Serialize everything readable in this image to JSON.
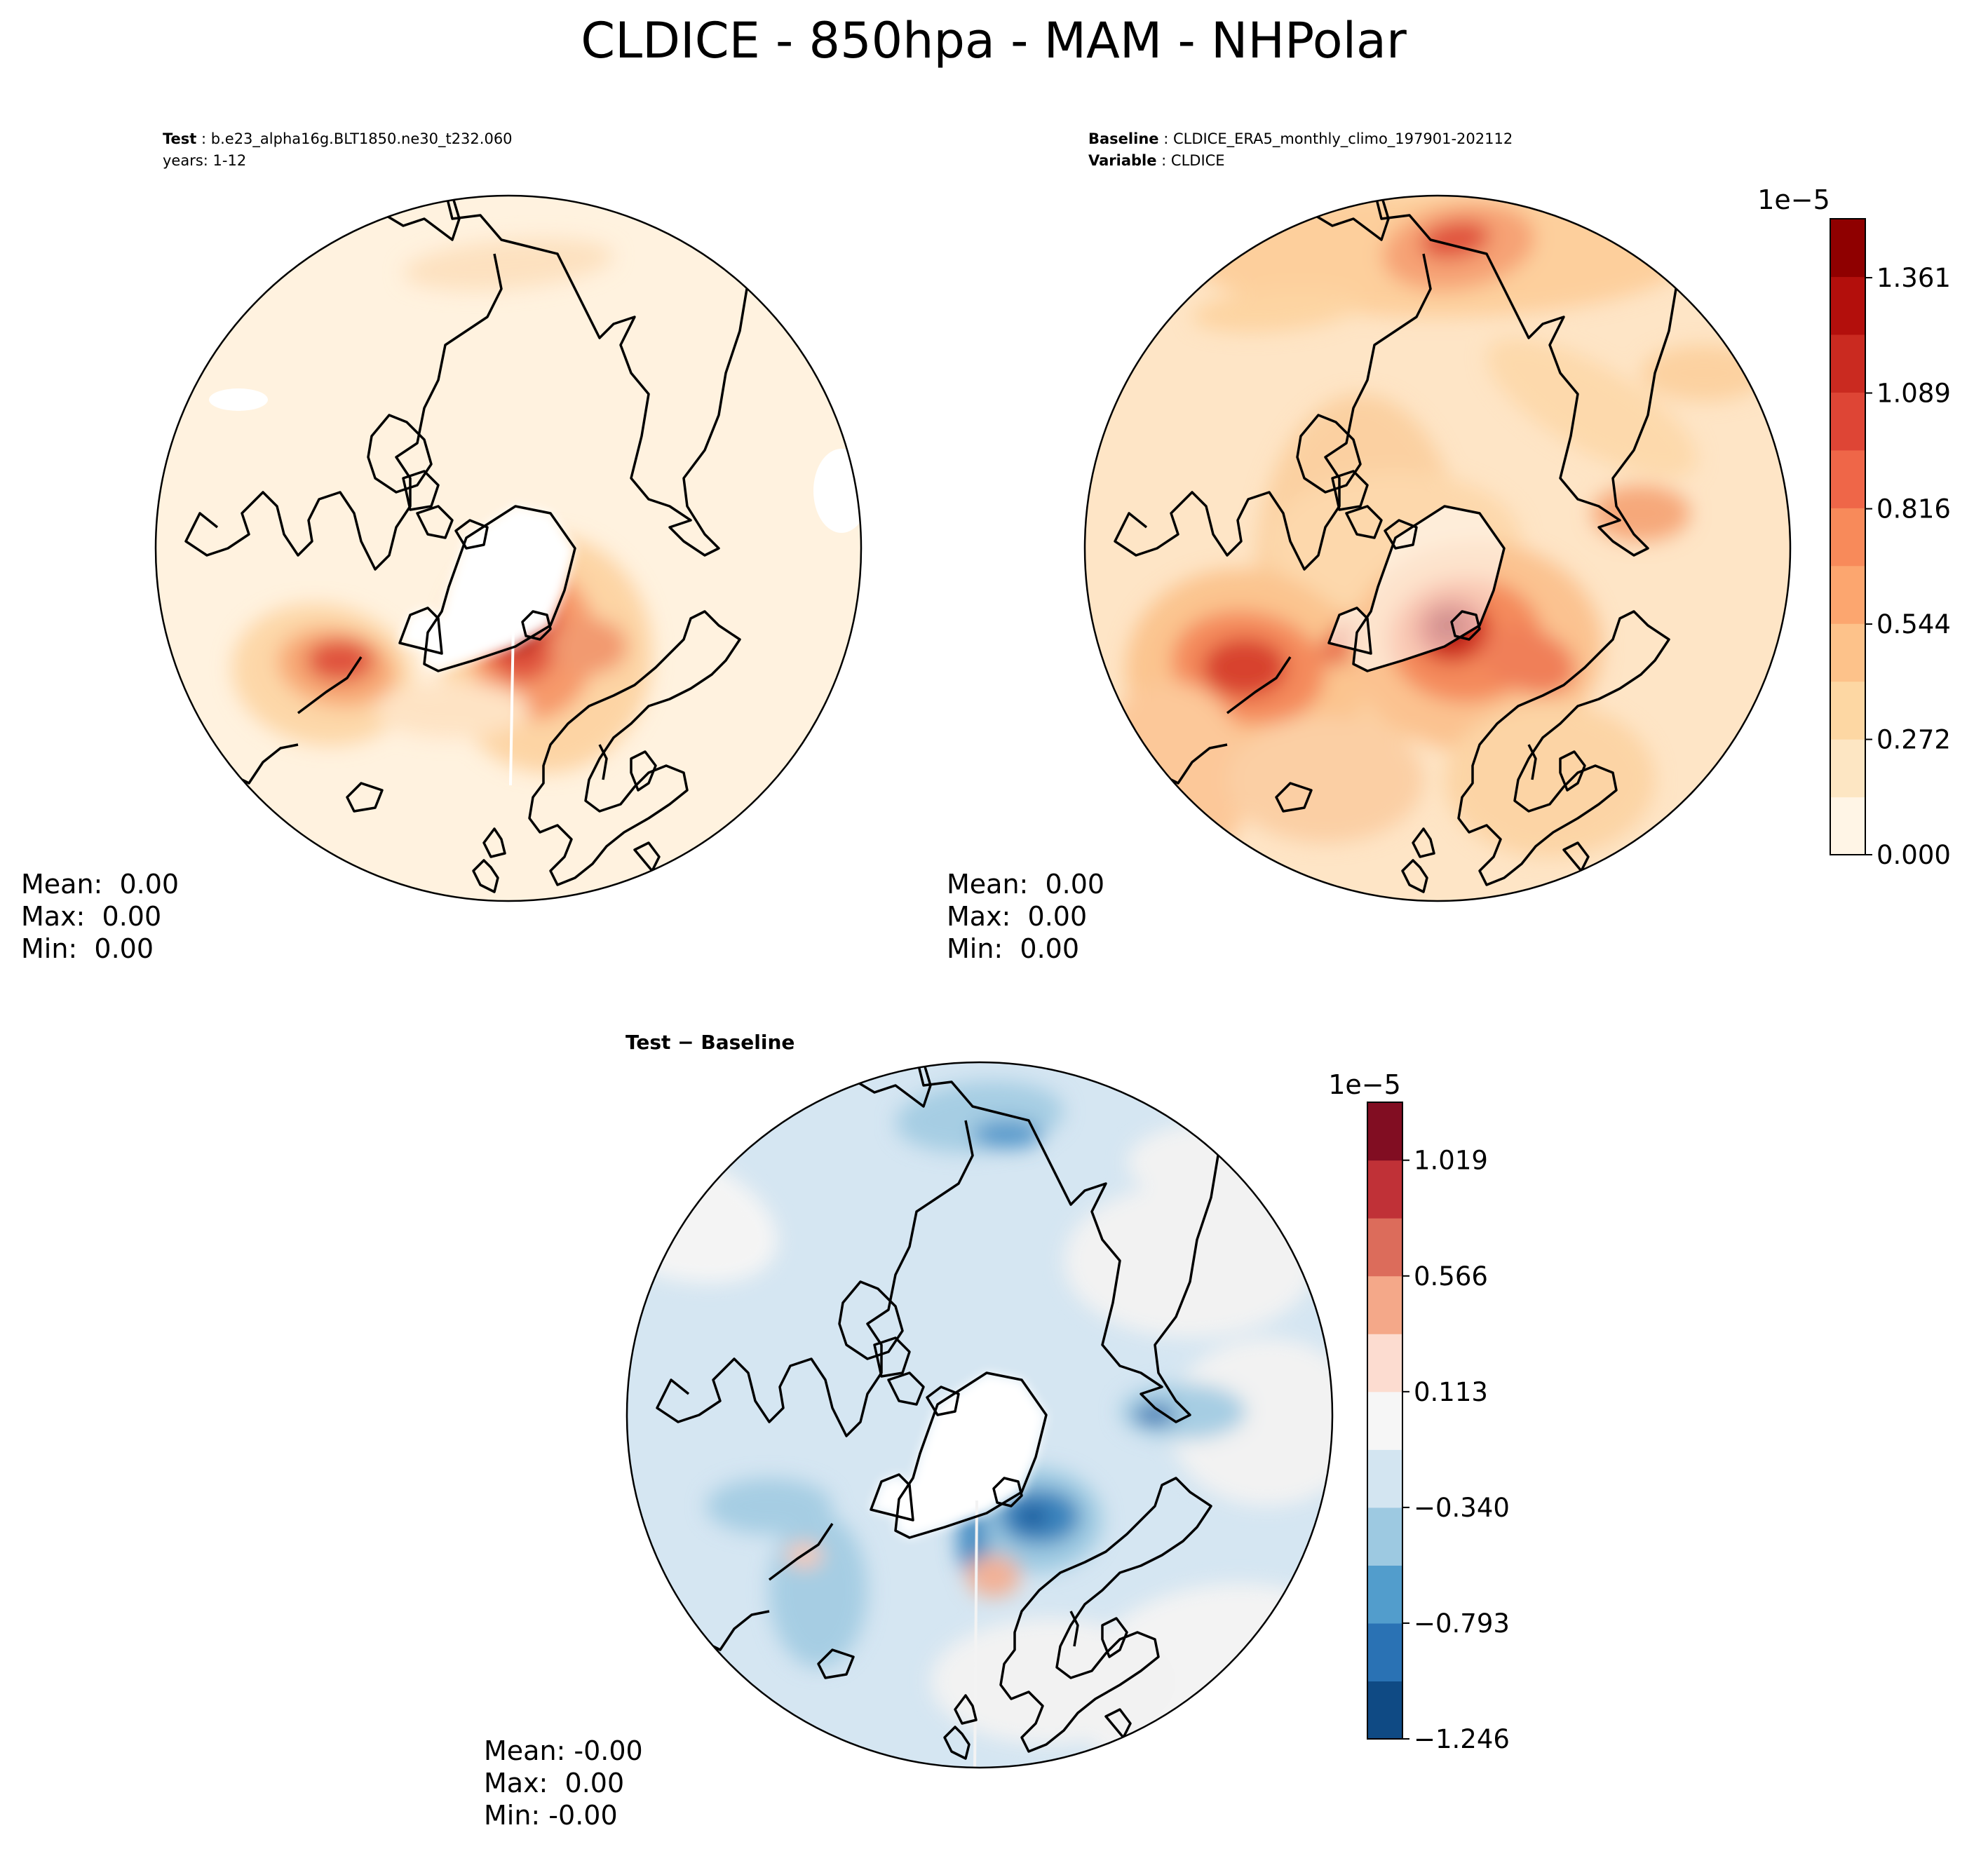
{
  "figure": {
    "title": "CLDICE - 850hpa - MAM - NHPolar"
  },
  "chart_data": [
    {
      "type": "polar-contour-map",
      "panel": "test",
      "header": [
        {
          "label": "Test",
          "value": "b.e23_alpha16g.BLT1850.ne30_t232.060"
        },
        {
          "label": "",
          "value": "years: 1-12"
        }
      ],
      "stats": [
        "Mean:  0.00",
        "Max:  0.00",
        "Min:  0.00"
      ],
      "colormap": "OrRd",
      "field_peak_intensity": 0.95,
      "colorbar": null
    },
    {
      "type": "polar-contour-map",
      "panel": "baseline",
      "header": [
        {
          "label": "Baseline",
          "value": "CLDICE_ERA5_monthly_climo_197901-202112"
        },
        {
          "label": "Variable",
          "value": "CLDICE"
        }
      ],
      "stats": [
        "Mean:  0.00",
        "Max:  0.00",
        "Min:  0.00"
      ],
      "colormap": "OrRd",
      "field_peak_intensity": 0.9,
      "colorbar": {
        "scale_label": "1e−5",
        "range": [
          0.0,
          1.5
        ],
        "ticks": [
          {
            "value": 0.0,
            "label": "0.000"
          },
          {
            "value": 0.272,
            "label": "0.272"
          },
          {
            "value": 0.544,
            "label": "0.544"
          },
          {
            "value": 0.816,
            "label": "0.816"
          },
          {
            "value": 1.089,
            "label": "1.089"
          },
          {
            "value": 1.361,
            "label": "1.361"
          }
        ],
        "colors": [
          "#fff5e6",
          "#fde6c3",
          "#fdd7a3",
          "#fdc28a",
          "#fca66f",
          "#f88a5a",
          "#ef6648",
          "#de4535",
          "#ca2a20",
          "#b30f0c",
          "#8f0000"
        ]
      }
    },
    {
      "type": "polar-contour-map",
      "panel": "difference",
      "header": [
        {
          "label": "Test − Baseline",
          "value": ""
        }
      ],
      "stats": [
        "Mean: -0.00",
        "Max:  0.00",
        "Min: -0.00"
      ],
      "colormap": "RdBu_r",
      "colorbar": {
        "scale_label": "1e−5",
        "range": [
          -1.246,
          1.246
        ],
        "ticks": [
          {
            "value": -1.246,
            "label": "−1.246"
          },
          {
            "value": -0.793,
            "label": "−0.793"
          },
          {
            "value": -0.34,
            "label": "−0.340"
          },
          {
            "value": 0.113,
            "label": "0.113"
          },
          {
            "value": 0.566,
            "label": "0.566"
          },
          {
            "value": 1.019,
            "label": "1.019"
          }
        ],
        "colors": [
          "#0f4a84",
          "#2a72b4",
          "#529dcc",
          "#9dc9e1",
          "#d3e5f1",
          "#f6f6f6",
          "#fcdcd0",
          "#f4a889",
          "#dc6c5b",
          "#c03137",
          "#810d22"
        ]
      }
    }
  ]
}
